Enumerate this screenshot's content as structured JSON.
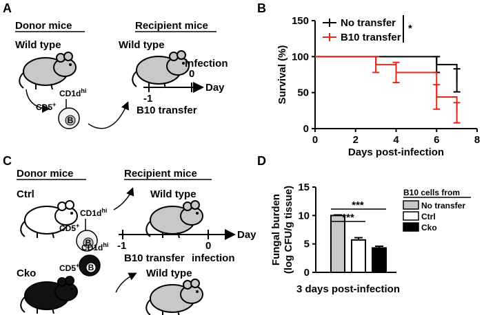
{
  "panels": {
    "A": {
      "letter": "A",
      "donor": "Donor mice",
      "donor_mouse": "Wild type",
      "cd5": "CD5",
      "cd5_sup": "+",
      "cd1d": "CD1d",
      "cd1d_sup": "hi",
      "cell": "B",
      "recipient": "Recipient mice",
      "recipient_mouse": "Wild type",
      "infection": "infection",
      "day0": "0",
      "day_minus1": "-1",
      "day": "Day",
      "transfer": "B10 transfer"
    },
    "C": {
      "letter": "C",
      "donor": "Donor mice",
      "donor_mouse_1": "Ctrl",
      "donor_mouse_2": "Cko",
      "cd5": "CD5",
      "cd5_sup": "+",
      "cd1d": "CD1d",
      "cd1d_sup": "hi",
      "cell": "B",
      "recipient": "Recipient mice",
      "recipient_mouse_1": "Wild type",
      "recipient_mouse_2": "Wild type",
      "day_minus1": "-1",
      "day0": "0",
      "day": "Day",
      "transfer": "B10 transfer",
      "infection": "infection"
    }
  },
  "chart_data": [
    {
      "type": "survival",
      "title": "B",
      "xlabel": "Days post-infection",
      "ylabel": "Survival (%)",
      "xlim": [
        0,
        8
      ],
      "xticks": [
        0,
        2,
        4,
        6,
        8
      ],
      "ylim": [
        0,
        150
      ],
      "yticks": [
        0,
        50,
        100,
        150
      ],
      "annotations": [
        "*"
      ],
      "series": [
        {
          "name": "No transfer",
          "color": "#000000",
          "x": [
            0,
            6,
            7
          ],
          "values": [
            100,
            89,
            67
          ],
          "errors": [
            null,
            11,
            16
          ]
        },
        {
          "name": "B10 transfer",
          "color": "#e8241c",
          "x": [
            0,
            3,
            4,
            6,
            7
          ],
          "values": [
            100,
            89,
            78,
            44,
            22
          ],
          "errors": [
            null,
            11,
            14,
            17,
            14
          ]
        }
      ]
    },
    {
      "type": "bar",
      "title": "D",
      "xlabel": "3 days post-infection",
      "ylabel": [
        "Fungal burden",
        "(log CFU/g tissue)"
      ],
      "legend_title": "B10 cells from",
      "categories": [
        "No transfer",
        "Ctrl",
        "Cko"
      ],
      "values": [
        10.0,
        5.7,
        4.3
      ],
      "errors": [
        0.1,
        0.4,
        0.3
      ],
      "colors": [
        "#c8c8c8",
        "#ffffff",
        "#000000"
      ],
      "ylim": [
        0,
        15
      ],
      "yticks": [
        0,
        5,
        10,
        15
      ],
      "annotations": [
        "***",
        "***"
      ]
    }
  ]
}
